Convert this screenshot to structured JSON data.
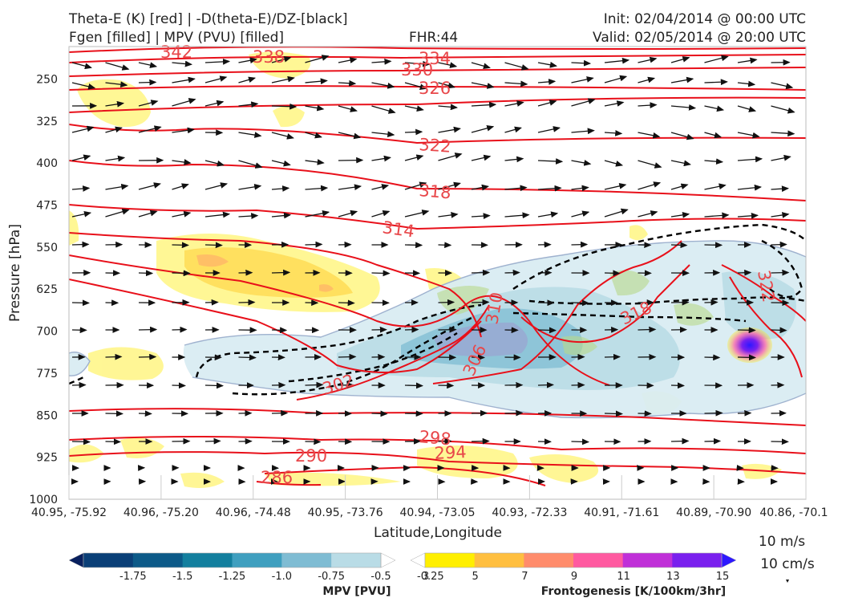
{
  "header": {
    "title_line1": "Theta-E (K) [red] | -D(theta-E)/DZ-[black]",
    "title_line2": "Fgen [filled] | MPV (PVU) [filled]",
    "fhr": "FHR:44",
    "init": "Init: 02/04/2014 @ 00:00 UTC",
    "valid": "Valid: 02/05/2014 @ 20:00 UTC"
  },
  "chart_data": {
    "type": "cross-section",
    "xlabel": "Latitude,Longitude",
    "ylabel": "Pressure [hPa]",
    "x_ticks": [
      "40.95, -75.92",
      "40.96, -75.20",
      "40.96, -74.48",
      "40.95, -73.76",
      "40.94, -73.05",
      "40.93, -72.33",
      "40.91, -71.61",
      "40.89, -70.90",
      "40.86, -70.1"
    ],
    "y_ticks": [
      250,
      325,
      400,
      475,
      550,
      625,
      700,
      775,
      850,
      925,
      1000
    ],
    "ylim": [
      1000,
      192
    ],
    "theta_e_labels": [
      "342",
      "338",
      "334",
      "330",
      "326",
      "322",
      "318",
      "314",
      "310",
      "306",
      "302",
      "298",
      "294",
      "290",
      "286",
      "318",
      "322"
    ],
    "mpv_colorbar": {
      "title": "MPV [PVU]",
      "ticks": [
        "-1.75",
        "-1.5",
        "-1.25",
        "-1.0",
        "-0.75",
        "-0.5",
        "-0.25"
      ],
      "colors": [
        "#08205e",
        "#0a3f77",
        "#0c5a88",
        "#137f9e",
        "#3f9fbf",
        "#7fbcd3",
        "#b9dce6",
        "#ffffff"
      ]
    },
    "fgen_colorbar": {
      "title": "Frontogenesis [K/100km/3hr]",
      "ticks": [
        "3",
        "5",
        "7",
        "9",
        "11",
        "13",
        "15"
      ],
      "colors": [
        "#ffffff",
        "#ffef00",
        "#ffbf40",
        "#ff8c6c",
        "#ff5aa0",
        "#c030d8",
        "#7a20ee",
        "#2d18ff"
      ]
    },
    "reference_vectors": [
      "10 m/s",
      "10 cm/s"
    ]
  }
}
